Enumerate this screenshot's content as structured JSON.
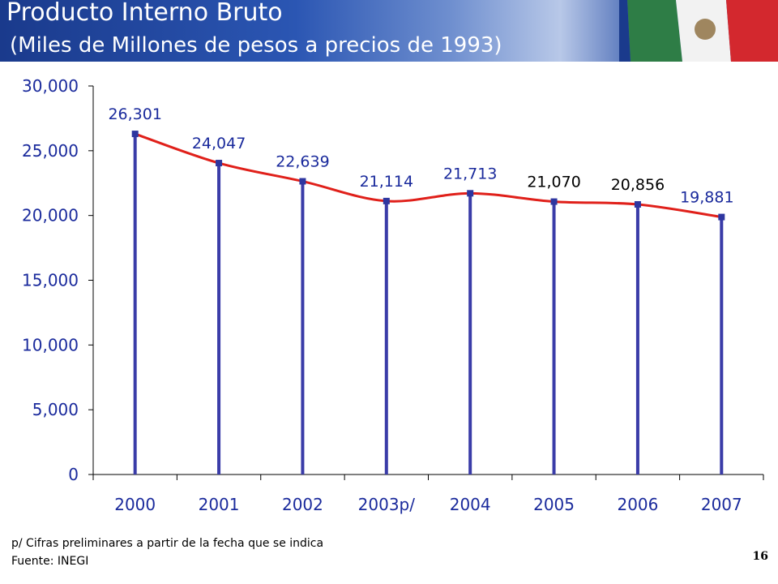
{
  "header": {
    "title": "Producto Interno Bruto",
    "subtitle": "(Miles de Millones de pesos a precios de 1993)"
  },
  "colors": {
    "line": "#e0201a",
    "drop": "#3a3ca8",
    "marker": "#2e36a0",
    "text": "#1a2a9c",
    "header": "#1a3a8c"
  },
  "chart_data": {
    "type": "line",
    "categories": [
      "2000",
      "2001",
      "2002",
      "2003p/",
      "2004",
      "2005",
      "2006",
      "2007"
    ],
    "values": [
      26301,
      24047,
      22639,
      21114,
      21713,
      21070,
      20856,
      19881
    ],
    "value_labels": [
      "26,301",
      "24,047",
      "22,639",
      "21,114",
      "21,713",
      "21,070",
      "20,856",
      "19,881"
    ],
    "label_colors": [
      "#1a2a9c",
      "#1a2a9c",
      "#1a2a9c",
      "#1a2a9c",
      "#1a2a9c",
      "#000000",
      "#000000",
      "#1a2a9c"
    ],
    "yticks": [
      "0",
      "5,000",
      "10,000",
      "15,000",
      "20,000",
      "25,000",
      "30,000"
    ],
    "ylim": [
      0,
      30000
    ],
    "xlabel": "",
    "ylabel": "",
    "grid": false,
    "drop_lines": true
  },
  "footer": {
    "note": "p/ Cifras preliminares a partir de la fecha que se indica",
    "source": "Fuente: INEGI",
    "page_number": "16"
  }
}
